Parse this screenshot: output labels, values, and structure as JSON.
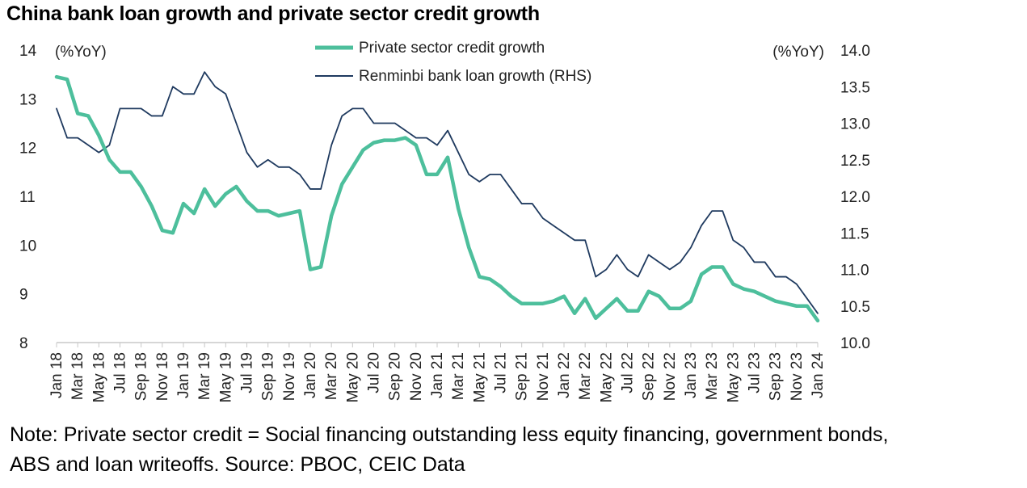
{
  "title": "China bank loan growth and private sector credit growth",
  "note_lines": [
    "Note: Private sector credit = Social financing outstanding less equity financing, government bonds,",
    "ABS and loan writeoffs. Source: PBOC, CEIC Data"
  ],
  "colors": {
    "private_credit": "#4dbf9c",
    "bank_loan": "#1f3a5f",
    "axis": "#c8c8c8"
  },
  "chart_data": {
    "type": "line",
    "title": "China bank loan growth and private sector credit growth",
    "left_axis_unit": "(%YoY)",
    "right_axis_unit": "(%YoY)",
    "ylim_left": [
      8,
      14
    ],
    "ylim_right": [
      10.0,
      14.0
    ],
    "left_ticks": [
      "8",
      "9",
      "10",
      "11",
      "12",
      "13",
      "14"
    ],
    "right_ticks": [
      "10.0",
      "10.5",
      "11.0",
      "11.5",
      "12.0",
      "12.5",
      "13.0",
      "13.5",
      "14.0"
    ],
    "x_tick_labels": [
      "Jan 18",
      "Mar 18",
      "May 18",
      "Jul 18",
      "Sep 18",
      "Nov 18",
      "Jan 19",
      "Mar 19",
      "May 19",
      "Jul 19",
      "Sep 19",
      "Nov 19",
      "Jan 20",
      "Mar 20",
      "May 20",
      "Jul 20",
      "Sep 20",
      "Nov 20",
      "Jan 21",
      "Mar 21",
      "May 21",
      "Jul 21",
      "Sep 21",
      "Nov 21",
      "Jan 22",
      "Mar 22",
      "May 22",
      "Jul 22",
      "Sep 22",
      "Nov 22",
      "Jan 23",
      "Mar 23",
      "May 23",
      "Jul 23",
      "Sep 23",
      "Nov 23",
      "Jan 24"
    ],
    "legend_position": "top-center",
    "grid": false,
    "series": [
      {
        "name": "Private sector credit growth",
        "axis": "left",
        "values": [
          13.45,
          13.4,
          12.7,
          12.65,
          12.25,
          11.75,
          11.5,
          11.5,
          11.2,
          10.8,
          10.3,
          10.25,
          10.85,
          10.65,
          11.15,
          10.8,
          11.05,
          11.2,
          10.9,
          10.7,
          10.7,
          10.6,
          10.65,
          10.7,
          9.5,
          9.55,
          10.6,
          11.25,
          11.6,
          11.95,
          12.1,
          12.15,
          12.15,
          12.2,
          12.05,
          11.45,
          11.45,
          11.8,
          10.75,
          9.95,
          9.35,
          9.3,
          9.15,
          8.95,
          8.8,
          8.8,
          8.8,
          8.85,
          8.95,
          8.6,
          8.9,
          8.5,
          8.7,
          8.9,
          8.65,
          8.65,
          9.05,
          8.95,
          8.7,
          8.7,
          8.85,
          9.4,
          9.55,
          9.55,
          9.2,
          9.1,
          9.05,
          8.95,
          8.85,
          8.8,
          8.75,
          8.75,
          8.45
        ]
      },
      {
        "name": "Renminbi bank loan growth (RHS)",
        "axis": "right",
        "values": [
          13.2,
          12.8,
          12.8,
          12.7,
          12.6,
          12.7,
          13.2,
          13.2,
          13.2,
          13.1,
          13.1,
          13.5,
          13.4,
          13.4,
          13.7,
          13.5,
          13.4,
          13.0,
          12.6,
          12.4,
          12.5,
          12.4,
          12.4,
          12.3,
          12.1,
          12.1,
          12.7,
          13.1,
          13.2,
          13.2,
          13.0,
          13.0,
          13.0,
          12.9,
          12.8,
          12.8,
          12.7,
          12.9,
          12.6,
          12.3,
          12.2,
          12.3,
          12.3,
          12.1,
          11.9,
          11.9,
          11.7,
          11.6,
          11.5,
          11.4,
          11.4,
          10.9,
          11.0,
          11.2,
          11.0,
          10.9,
          11.2,
          11.1,
          11.0,
          11.1,
          11.3,
          11.6,
          11.8,
          11.8,
          11.4,
          11.3,
          11.1,
          11.1,
          10.9,
          10.9,
          10.8,
          10.6,
          10.4
        ]
      }
    ]
  }
}
